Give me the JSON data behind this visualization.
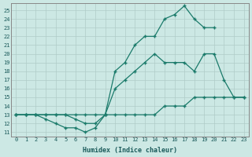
{
  "bg_color": "#cce8e4",
  "line_color": "#1a7a6a",
  "xlabel": "Humidex (Indice chaleur)",
  "xlim": [
    -0.5,
    23.5
  ],
  "ylim": [
    10.5,
    25.8
  ],
  "xticks": [
    0,
    1,
    2,
    3,
    4,
    5,
    6,
    7,
    8,
    9,
    10,
    11,
    12,
    13,
    14,
    15,
    16,
    17,
    18,
    19,
    20,
    21,
    22,
    23
  ],
  "yticks": [
    11,
    12,
    13,
    14,
    15,
    16,
    17,
    18,
    19,
    20,
    21,
    22,
    23,
    24,
    25
  ],
  "line1_x": [
    0,
    1,
    2,
    3,
    4,
    5,
    6,
    7,
    8,
    9,
    10,
    11,
    12,
    13,
    14,
    15,
    16,
    17,
    18,
    19,
    20,
    21,
    22,
    23
  ],
  "line1_y": [
    13,
    13,
    13,
    13,
    13,
    13,
    13,
    13,
    13,
    13,
    13,
    13,
    13,
    13,
    13,
    14,
    14,
    14,
    15,
    15,
    15,
    15,
    15,
    15
  ],
  "line2_x": [
    0,
    1,
    2,
    3,
    4,
    5,
    6,
    7,
    8,
    9,
    10,
    11,
    12,
    13,
    14,
    15,
    16,
    17,
    18,
    19,
    20,
    21,
    22,
    23
  ],
  "line2_y": [
    13,
    13,
    13,
    12.5,
    12,
    11.5,
    11.5,
    11,
    11.5,
    13,
    16,
    17,
    18,
    19,
    20,
    19,
    19,
    19,
    18,
    20,
    20,
    17,
    15,
    15
  ],
  "line3_x": [
    0,
    1,
    2,
    3,
    4,
    5,
    6,
    7,
    8,
    9,
    10,
    11,
    12,
    13,
    14,
    15,
    16,
    17,
    18,
    19,
    20
  ],
  "line3_y": [
    13,
    13,
    13,
    13,
    13,
    13,
    12.5,
    12,
    12,
    13,
    18,
    19,
    21,
    22,
    22,
    24,
    24.5,
    25.5,
    24,
    23,
    23
  ]
}
